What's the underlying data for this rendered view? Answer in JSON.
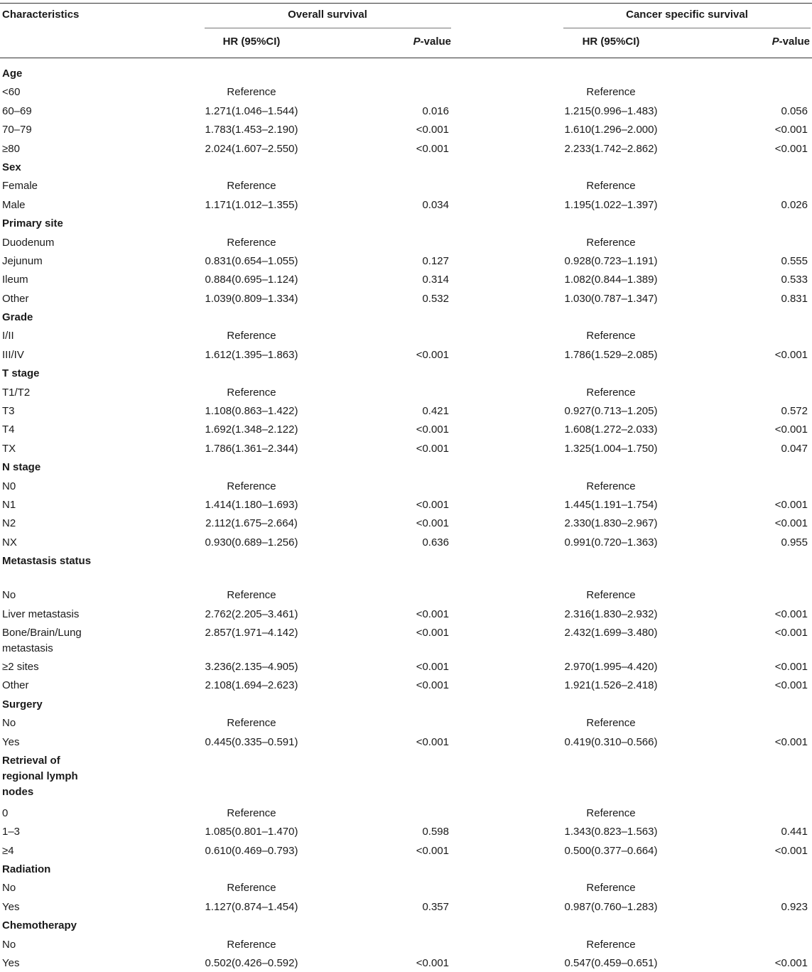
{
  "header": {
    "characteristics": "Characteristics",
    "overall_survival": "Overall survival",
    "cancer_specific_survival": "Cancer specific survival",
    "hr_label": "HR (95%CI)",
    "p_italic": "P",
    "p_suffix": "-value"
  },
  "rows": [
    {
      "type": "category",
      "label": "Age"
    },
    {
      "type": "item",
      "label": "<60",
      "hr1": "Reference",
      "p1": "",
      "hr2": "Reference",
      "p2": ""
    },
    {
      "type": "item",
      "label": "60–69",
      "hr1": "1.271(1.046–1.544)",
      "p1": "0.016",
      "hr2": "1.215(0.996–1.483)",
      "p2": "0.056"
    },
    {
      "type": "item",
      "label": "70–79",
      "hr1": "1.783(1.453–2.190)",
      "p1": "<0.001",
      "hr2": "1.610(1.296–2.000)",
      "p2": "<0.001"
    },
    {
      "type": "item",
      "label": "≥80",
      "hr1": "2.024(1.607–2.550)",
      "p1": "<0.001",
      "hr2": "2.233(1.742–2.862)",
      "p2": "<0.001"
    },
    {
      "type": "category",
      "label": "Sex"
    },
    {
      "type": "item",
      "label": "Female",
      "hr1": "Reference",
      "p1": "",
      "hr2": "Reference",
      "p2": ""
    },
    {
      "type": "item",
      "label": "Male",
      "hr1": "1.171(1.012–1.355)",
      "p1": "0.034",
      "hr2": "1.195(1.022–1.397)",
      "p2": "0.026"
    },
    {
      "type": "category",
      "label": "Primary site"
    },
    {
      "type": "item",
      "label": "Duodenum",
      "hr1": "Reference",
      "p1": "",
      "hr2": "Reference",
      "p2": ""
    },
    {
      "type": "item",
      "label": "Jejunum",
      "hr1": "0.831(0.654–1.055)",
      "p1": "0.127",
      "hr2": "0.928(0.723–1.191)",
      "p2": "0.555"
    },
    {
      "type": "item",
      "label": "Ileum",
      "hr1": "0.884(0.695–1.124)",
      "p1": "0.314",
      "hr2": "1.082(0.844–1.389)",
      "p2": "0.533"
    },
    {
      "type": "item",
      "label": "Other",
      "hr1": "1.039(0.809–1.334)",
      "p1": "0.532",
      "hr2": "1.030(0.787–1.347)",
      "p2": "0.831"
    },
    {
      "type": "category",
      "label": "Grade"
    },
    {
      "type": "item",
      "label": "I/II",
      "hr1": "Reference",
      "p1": "",
      "hr2": "Reference",
      "p2": ""
    },
    {
      "type": "item",
      "label": "III/IV",
      "hr1": "1.612(1.395–1.863)",
      "p1": "<0.001",
      "hr2": "1.786(1.529–2.085)",
      "p2": "<0.001"
    },
    {
      "type": "category",
      "label": "T stage"
    },
    {
      "type": "item",
      "label": "T1/T2",
      "hr1": "Reference",
      "p1": "",
      "hr2": "Reference",
      "p2": ""
    },
    {
      "type": "item",
      "label": "T3",
      "hr1": "1.108(0.863–1.422)",
      "p1": "0.421",
      "hr2": "0.927(0.713–1.205)",
      "p2": "0.572"
    },
    {
      "type": "item",
      "label": "T4",
      "hr1": "1.692(1.348–2.122)",
      "p1": "<0.001",
      "hr2": "1.608(1.272–2.033)",
      "p2": "<0.001"
    },
    {
      "type": "item",
      "label": "TX",
      "hr1": "1.786(1.361–2.344)",
      "p1": "<0.001",
      "hr2": "1.325(1.004–1.750)",
      "p2": "0.047"
    },
    {
      "type": "category",
      "label": "N stage"
    },
    {
      "type": "item",
      "label": "N0",
      "hr1": "Reference",
      "p1": "",
      "hr2": "Reference",
      "p2": ""
    },
    {
      "type": "item",
      "label": "N1",
      "hr1": "1.414(1.180–1.693)",
      "p1": "<0.001",
      "hr2": "1.445(1.191–1.754)",
      "p2": "<0.001"
    },
    {
      "type": "item",
      "label": "N2",
      "hr1": "2.112(1.675–2.664)",
      "p1": "<0.001",
      "hr2": "2.330(1.830–2.967)",
      "p2": "<0.001"
    },
    {
      "type": "item",
      "label": "NX",
      "hr1": "0.930(0.689–1.256)",
      "p1": "0.636",
      "hr2": "0.991(0.720–1.363)",
      "p2": "0.955"
    },
    {
      "type": "category",
      "label": "Metastasis status",
      "lines": 2
    },
    {
      "type": "item",
      "label": "No",
      "hr1": "Reference",
      "p1": "",
      "hr2": "Reference",
      "p2": ""
    },
    {
      "type": "item",
      "label": "Liver metastasis",
      "hr1": "2.762(2.205–3.461)",
      "p1": "<0.001",
      "hr2": "2.316(1.830–2.932)",
      "p2": "<0.001"
    },
    {
      "type": "item",
      "label": "Bone/Brain/Lung metastasis",
      "lines": 2,
      "hr1": "2.857(1.971–4.142)",
      "p1": "<0.001",
      "hr2": "2.432(1.699–3.480)",
      "p2": "<0.001"
    },
    {
      "type": "item",
      "label": "≥2 sites",
      "hr1": "3.236(2.135–4.905)",
      "p1": "<0.001",
      "hr2": "2.970(1.995–4.420)",
      "p2": "<0.001"
    },
    {
      "type": "item",
      "label": "Other",
      "hr1": "2.108(1.694–2.623)",
      "p1": "<0.001",
      "hr2": "1.921(1.526–2.418)",
      "p2": "<0.001"
    },
    {
      "type": "category",
      "label": "Surgery"
    },
    {
      "type": "item",
      "label": "No",
      "hr1": "Reference",
      "p1": "",
      "hr2": "Reference",
      "p2": ""
    },
    {
      "type": "item",
      "label": "Yes",
      "hr1": "0.445(0.335–0.591)",
      "p1": "<0.001",
      "hr2": "0.419(0.310–0.566)",
      "p2": "<0.001"
    },
    {
      "type": "category",
      "label": "Retrieval of regional lymph nodes",
      "lines": 3
    },
    {
      "type": "item",
      "label": "0",
      "hr1": "Reference",
      "p1": "",
      "hr2": "Reference",
      "p2": ""
    },
    {
      "type": "item",
      "label": "1–3",
      "hr1": "1.085(0.801–1.470)",
      "p1": "0.598",
      "hr2": "1.343(0.823–1.563)",
      "p2": "0.441"
    },
    {
      "type": "item",
      "label": "≥4",
      "hr1": "0.610(0.469–0.793)",
      "p1": "<0.001",
      "hr2": "0.500(0.377–0.664)",
      "p2": "<0.001"
    },
    {
      "type": "category",
      "label": "Radiation"
    },
    {
      "type": "item",
      "label": "No",
      "hr1": "Reference",
      "p1": "",
      "hr2": "Reference",
      "p2": ""
    },
    {
      "type": "item",
      "label": "Yes",
      "hr1": "1.127(0.874–1.454)",
      "p1": "0.357",
      "hr2": "0.987(0.760–1.283)",
      "p2": "0.923"
    },
    {
      "type": "category",
      "label": "Chemotherapy"
    },
    {
      "type": "item",
      "label": "No",
      "hr1": "Reference",
      "p1": "",
      "hr2": "Reference",
      "p2": ""
    },
    {
      "type": "item",
      "label": "Yes",
      "hr1": "0.502(0.426–0.592)",
      "p1": "<0.001",
      "hr2": "0.547(0.459–0.651)",
      "p2": "<0.001"
    }
  ]
}
